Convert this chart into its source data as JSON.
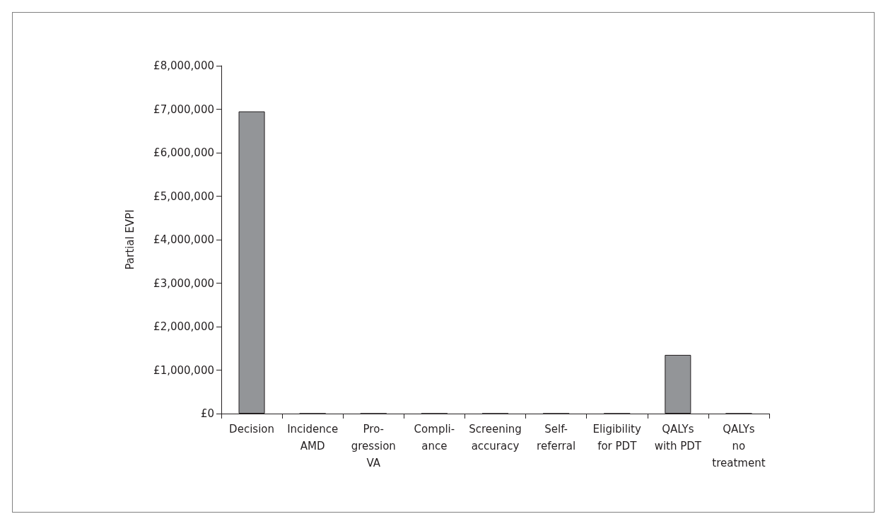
{
  "chart_data": {
    "type": "bar",
    "ylabel": "Partial EVPI",
    "categories": [
      "Decision",
      "Incidence\nAMD",
      "Pro-\ngression\nVA",
      "Compli-\nance",
      "Screening\naccuracy",
      "Self-\nreferral",
      "Eligibility\nfor PDT",
      "QALYs\nwith PDT",
      "QALYs\nno\ntreatment"
    ],
    "values": [
      6950000,
      0,
      0,
      0,
      0,
      0,
      0,
      1350000,
      0
    ],
    "color": "#939598",
    "ylim": [
      0,
      8000000
    ],
    "yticks": [
      {
        "value": 0,
        "label": "£0"
      },
      {
        "value": 1000000,
        "label": "£1,000,000"
      },
      {
        "value": 2000000,
        "label": "£2,000,000"
      },
      {
        "value": 3000000,
        "label": "£3,000,000"
      },
      {
        "value": 4000000,
        "label": "£4,000,000"
      },
      {
        "value": 5000000,
        "label": "£5,000,000"
      },
      {
        "value": 6000000,
        "label": "£6,000,000"
      },
      {
        "value": 7000000,
        "label": "£7,000,000"
      },
      {
        "value": 8000000,
        "label": "£8,000,000"
      }
    ],
    "grid": false
  }
}
